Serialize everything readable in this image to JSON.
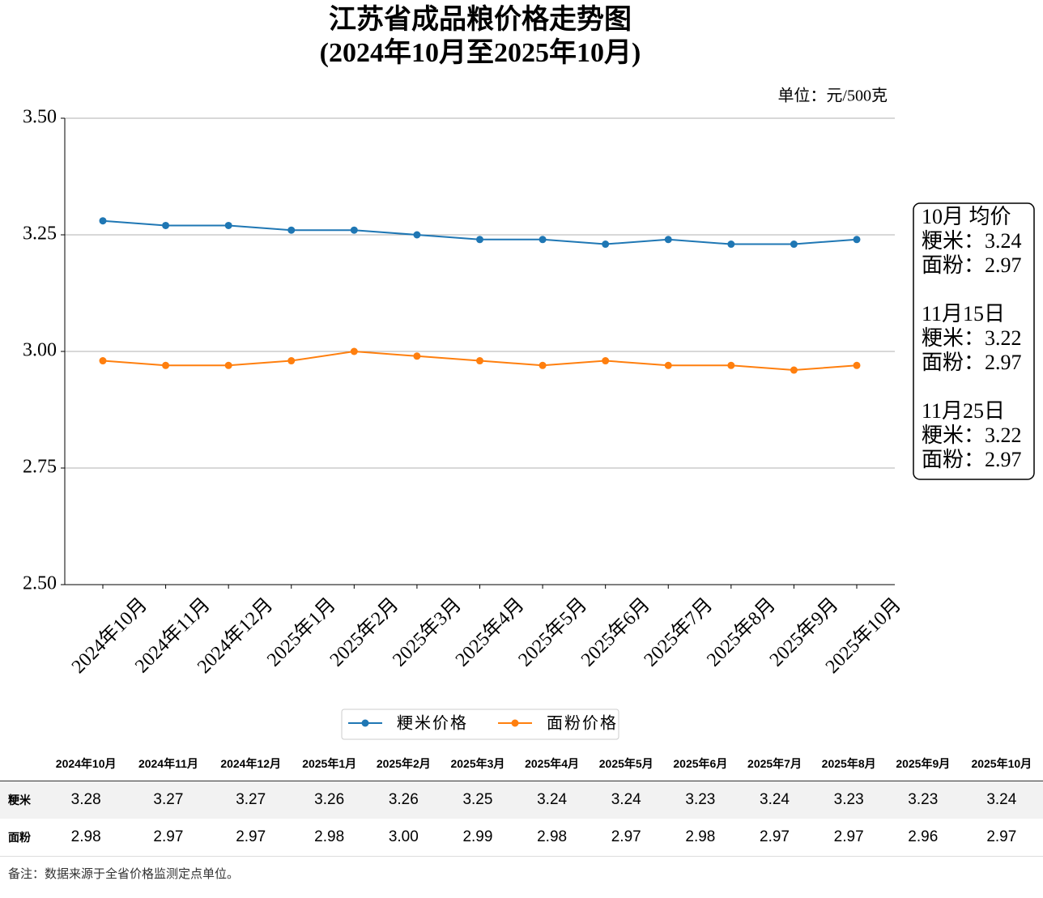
{
  "chart_data": {
    "type": "line",
    "title": "江苏省成品粮价格走势图",
    "subtitle": "(2024年10月至2025年10月)",
    "unit_label": "单位：元/500克",
    "categories": [
      "2024年10月",
      "2024年11月",
      "2024年12月",
      "2025年1月",
      "2025年2月",
      "2025年3月",
      "2025年4月",
      "2025年5月",
      "2025年6月",
      "2025年7月",
      "2025年8月",
      "2025年9月",
      "2025年10月"
    ],
    "series": [
      {
        "name": "粳米价格",
        "color": "#1f77b4",
        "values": [
          3.28,
          3.27,
          3.27,
          3.26,
          3.26,
          3.25,
          3.24,
          3.24,
          3.23,
          3.24,
          3.23,
          3.23,
          3.24
        ]
      },
      {
        "name": "面粉价格",
        "color": "#ff7f0e",
        "values": [
          2.98,
          2.97,
          2.97,
          2.98,
          3.0,
          2.99,
          2.98,
          2.97,
          2.98,
          2.97,
          2.97,
          2.96,
          2.97
        ]
      }
    ],
    "ylim": [
      2.5,
      3.5
    ],
    "yticks": [
      {
        "value": 2.5,
        "label": "2.50"
      },
      2.75,
      {
        "value": 3.0,
        "label": "3.00"
      },
      3.25,
      {
        "value": 3.5,
        "label": "3.50"
      }
    ],
    "grid": true,
    "legend": "bottom",
    "annotations": [
      {
        "heading": "10月 均价",
        "lines": [
          "粳米：3.24",
          "面粉：2.97"
        ]
      },
      {
        "heading": "11月15日",
        "lines": [
          "粳米：3.22",
          "面粉：2.97"
        ]
      },
      {
        "heading": "11月25日",
        "lines": [
          "粳米：3.22",
          "面粉：2.97"
        ]
      }
    ]
  },
  "table": {
    "columns": [
      "2024年10月",
      "2024年11月",
      "2024年12月",
      "2025年1月",
      "2025年2月",
      "2025年3月",
      "2025年4月",
      "2025年5月",
      "2025年6月",
      "2025年7月",
      "2025年8月",
      "2025年9月",
      "2025年10月"
    ],
    "rows": [
      {
        "label": "粳米",
        "cells": [
          "3.28",
          "3.27",
          "3.27",
          "3.26",
          "3.26",
          "3.25",
          "3.24",
          "3.24",
          "3.23",
          "3.24",
          "3.23",
          "3.23",
          "3.24"
        ]
      },
      {
        "label": "面粉",
        "cells": [
          "2.98",
          "2.97",
          "2.97",
          "2.98",
          "3.00",
          "2.99",
          "2.98",
          "2.97",
          "2.98",
          "2.97",
          "2.97",
          "2.96",
          "2.97"
        ]
      }
    ]
  },
  "footnote": "备注：数据来源于全省价格监测定点单位。"
}
